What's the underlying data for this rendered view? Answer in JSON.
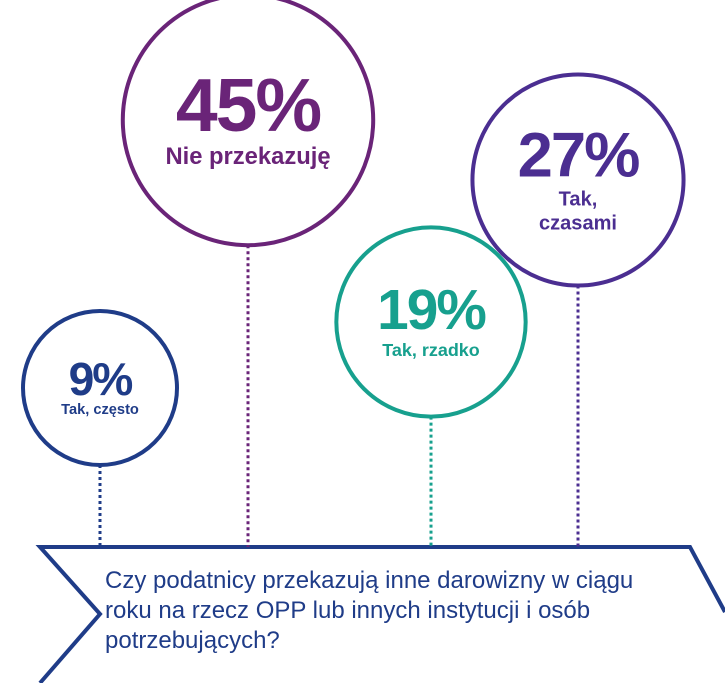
{
  "chart_data": {
    "type": "bubble",
    "title": "Czy podatnicy przekazują inne darowizny w ciągu roku na rzecz OPP lub innych instytucji i osób potrzebujących?",
    "categories": [
      "Tak, często",
      "Nie przekazuję",
      "Tak, rzadko",
      "Tak, czasami"
    ],
    "values": [
      9,
      45,
      19,
      27
    ],
    "value_labels": [
      "9%",
      "45%",
      "19%",
      "27%"
    ],
    "colors": [
      "#1f3c88",
      "#6a2478",
      "#17a08e",
      "#4b2e91"
    ]
  }
}
